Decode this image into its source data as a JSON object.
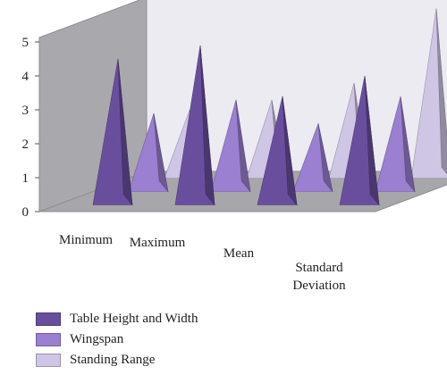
{
  "chart_data": {
    "type": "bar",
    "style": "3d-pyramid",
    "categories": [
      "Minimum",
      "Maximum",
      "Mean",
      "Standard Deviation"
    ],
    "category_lines": [
      [
        "Minimum"
      ],
      [
        "Maximum"
      ],
      [
        "Mean"
      ],
      [
        "Standard",
        "Deviation"
      ]
    ],
    "series": [
      {
        "name": "Table Height and Width",
        "color": "#6a4e9e",
        "values": [
          4.3,
          4.7,
          3.2,
          3.8
        ]
      },
      {
        "name": "Wingspan",
        "color": "#9b7fd0",
        "values": [
          2.3,
          2.7,
          2.0,
          2.8
        ]
      },
      {
        "name": "Standing Range",
        "color": "#cfc5e4",
        "values": [
          2.0,
          2.3,
          2.8,
          5.0
        ]
      }
    ],
    "ylim": [
      0,
      5
    ],
    "yticks": [
      0,
      1,
      2,
      3,
      4,
      5
    ],
    "grid": false,
    "legend_position": "bottom-left"
  }
}
